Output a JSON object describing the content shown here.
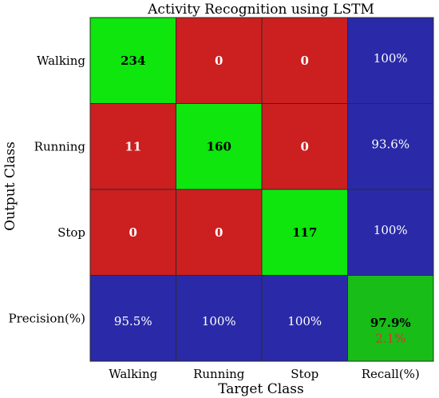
{
  "chart_data": {
    "type": "heatmap",
    "title": "Activity Recognition using LSTM",
    "xlabel": "Target Class",
    "ylabel": "Output Class",
    "row_labels": [
      "Walking",
      "Running",
      "Stop",
      "Precision(%)"
    ],
    "col_labels": [
      "Walking",
      "Running",
      "Stop",
      "Recall(%)"
    ],
    "matrix": [
      [
        234,
        0,
        0
      ],
      [
        11,
        160,
        0
      ],
      [
        0,
        0,
        117
      ]
    ],
    "recall_text": [
      "100%",
      "93.6%",
      "100%"
    ],
    "precision_text": [
      "95.5%",
      "100%",
      "100%"
    ],
    "overall_accuracy": "97.9%",
    "overall_error": "2.1%",
    "colors": {
      "correct": "#0ee60e",
      "incorrect": "#cc1f1f",
      "summary": "#2a2aa8",
      "overall": "#18bd18",
      "error_text": "#e03030",
      "border": "#2b2b2b"
    }
  }
}
